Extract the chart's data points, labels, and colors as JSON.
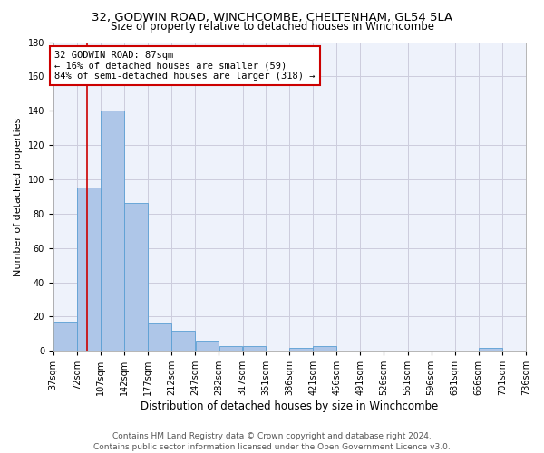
{
  "title_line1": "32, GODWIN ROAD, WINCHCOMBE, CHELTENHAM, GL54 5LA",
  "title_line2": "Size of property relative to detached houses in Winchcombe",
  "xlabel": "Distribution of detached houses by size in Winchcombe",
  "ylabel": "Number of detached properties",
  "bar_color": "#aec6e8",
  "bar_edge_color": "#5a9fd4",
  "background_color": "#eef2fb",
  "grid_color": "#ccccdd",
  "bin_edges": [
    37,
    72,
    107,
    142,
    177,
    212,
    247,
    282,
    317,
    351,
    386,
    421,
    456,
    491,
    526,
    561,
    596,
    631,
    666,
    701,
    736
  ],
  "bar_heights": [
    17,
    95,
    140,
    86,
    16,
    12,
    6,
    3,
    3,
    0,
    2,
    3,
    0,
    0,
    0,
    0,
    0,
    0,
    2,
    0
  ],
  "xlim": [
    37,
    736
  ],
  "ylim": [
    0,
    180
  ],
  "yticks": [
    0,
    20,
    40,
    60,
    80,
    100,
    120,
    140,
    160,
    180
  ],
  "xtick_labels": [
    "37sqm",
    "72sqm",
    "107sqm",
    "142sqm",
    "177sqm",
    "212sqm",
    "247sqm",
    "282sqm",
    "317sqm",
    "351sqm",
    "386sqm",
    "421sqm",
    "456sqm",
    "491sqm",
    "526sqm",
    "561sqm",
    "596sqm",
    "631sqm",
    "666sqm",
    "701sqm",
    "736sqm"
  ],
  "property_size": 87,
  "red_line_color": "#cc0000",
  "annotation_text": "32 GODWIN ROAD: 87sqm\n← 16% of detached houses are smaller (59)\n84% of semi-detached houses are larger (318) →",
  "annotation_box_color": "#ffffff",
  "annotation_border_color": "#cc0000",
  "footer_line1": "Contains HM Land Registry data © Crown copyright and database right 2024.",
  "footer_line2": "Contains public sector information licensed under the Open Government Licence v3.0.",
  "title_fontsize": 9.5,
  "subtitle_fontsize": 8.5,
  "xlabel_fontsize": 8.5,
  "ylabel_fontsize": 8,
  "tick_fontsize": 7,
  "annotation_fontsize": 7.5,
  "footer_fontsize": 6.5
}
